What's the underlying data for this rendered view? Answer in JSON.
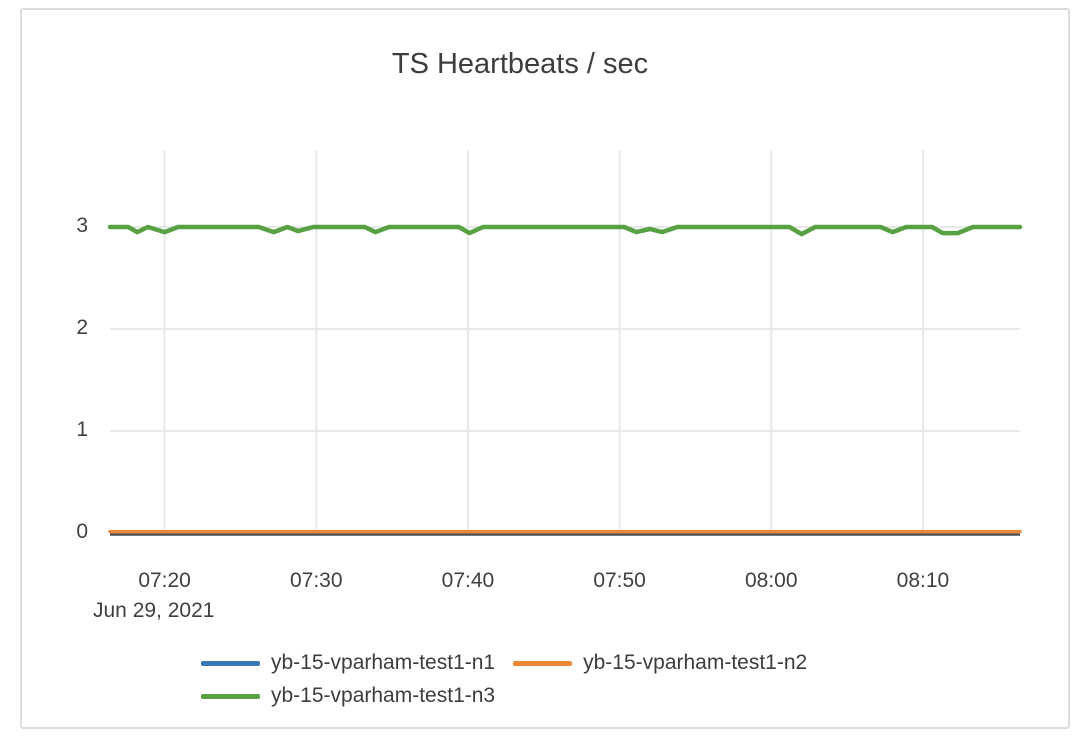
{
  "frame": {
    "background": "#ffffff",
    "border_color": "#dcdcdc"
  },
  "chart_data": {
    "type": "line",
    "title": "TS Heartbeats / sec",
    "x_axis": {
      "tick_labels": [
        "07:20",
        "07:30",
        "07:40",
        "07:50",
        "08:00",
        "08:10"
      ],
      "tick_minutes": [
        20,
        30,
        40,
        50,
        60,
        70
      ],
      "date_label": "Jun 29, 2021",
      "window_start_min": 16.4,
      "window_end_min": 76.4,
      "grid": true
    },
    "y_axis": {
      "tick_labels": [
        "0",
        "1",
        "2",
        "3"
      ],
      "tick_values": [
        0,
        1,
        2,
        3
      ],
      "ylim": [
        0,
        3.755
      ],
      "grid": true
    },
    "grid_color": "#e8e8e8",
    "zeroline_color": "#514e48",
    "legend_position": "bottom",
    "series": [
      {
        "name": "yb-15-vparham-test1-n1",
        "color": "#3878b4",
        "points": [
          [
            16.4,
            0
          ],
          [
            76.4,
            0
          ]
        ]
      },
      {
        "name": "yb-15-vparham-test1-n2",
        "color": "#ef8536",
        "points": [
          [
            16.4,
            0
          ],
          [
            76.4,
            0
          ]
        ]
      },
      {
        "name": "yb-15-vparham-test1-n3",
        "color": "#57a143",
        "points": [
          [
            16.4,
            3
          ],
          [
            17.6,
            3
          ],
          [
            18.2,
            2.95
          ],
          [
            18.9,
            3
          ],
          [
            20.0,
            2.95
          ],
          [
            20.9,
            3
          ],
          [
            26.2,
            3
          ],
          [
            27.2,
            2.95
          ],
          [
            28.1,
            3
          ],
          [
            28.8,
            2.96
          ],
          [
            29.8,
            3
          ],
          [
            33.2,
            3
          ],
          [
            33.9,
            2.95
          ],
          [
            34.8,
            3
          ],
          [
            39.4,
            3
          ],
          [
            40.1,
            2.94
          ],
          [
            41.0,
            3
          ],
          [
            50.3,
            3
          ],
          [
            51.1,
            2.95
          ],
          [
            52.0,
            2.98
          ],
          [
            52.8,
            2.95
          ],
          [
            53.8,
            3
          ],
          [
            61.2,
            3
          ],
          [
            62.0,
            2.93
          ],
          [
            62.9,
            3
          ],
          [
            67.2,
            3
          ],
          [
            68.0,
            2.95
          ],
          [
            68.9,
            3
          ],
          [
            70.6,
            3
          ],
          [
            71.3,
            2.94
          ],
          [
            72.3,
            2.94
          ],
          [
            73.3,
            3
          ],
          [
            76.4,
            3
          ]
        ]
      }
    ]
  }
}
